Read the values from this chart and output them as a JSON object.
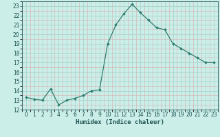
{
  "x": [
    0,
    1,
    2,
    3,
    4,
    5,
    6,
    7,
    8,
    9,
    10,
    11,
    12,
    13,
    14,
    15,
    16,
    17,
    18,
    19,
    20,
    21,
    22,
    23
  ],
  "y": [
    13.3,
    13.1,
    13.0,
    14.2,
    12.5,
    13.0,
    13.2,
    13.5,
    14.0,
    14.1,
    19.0,
    21.0,
    22.2,
    23.2,
    22.3,
    21.5,
    20.7,
    20.5,
    19.0,
    18.5,
    18.0,
    17.5,
    17.0,
    17.0
  ],
  "xlabel": "Humidex (Indice chaleur)",
  "line_color": "#2e7d6e",
  "marker": "D",
  "marker_size": 2.0,
  "bg_color": "#cceee8",
  "grid_major_color": "#aad4cc",
  "grid_minor_color": "#d4b8b8",
  "tick_color": "#1a5050",
  "ylim": [
    12,
    23.5
  ],
  "xlim": [
    -0.5,
    23.5
  ],
  "yticks": [
    12,
    13,
    14,
    15,
    16,
    17,
    18,
    19,
    20,
    21,
    22,
    23
  ],
  "xticks": [
    0,
    1,
    2,
    3,
    4,
    5,
    6,
    7,
    8,
    9,
    10,
    11,
    12,
    13,
    14,
    15,
    16,
    17,
    18,
    19,
    20,
    21,
    22,
    23
  ],
  "tick_fontsize": 5.5,
  "xlabel_fontsize": 6.5
}
